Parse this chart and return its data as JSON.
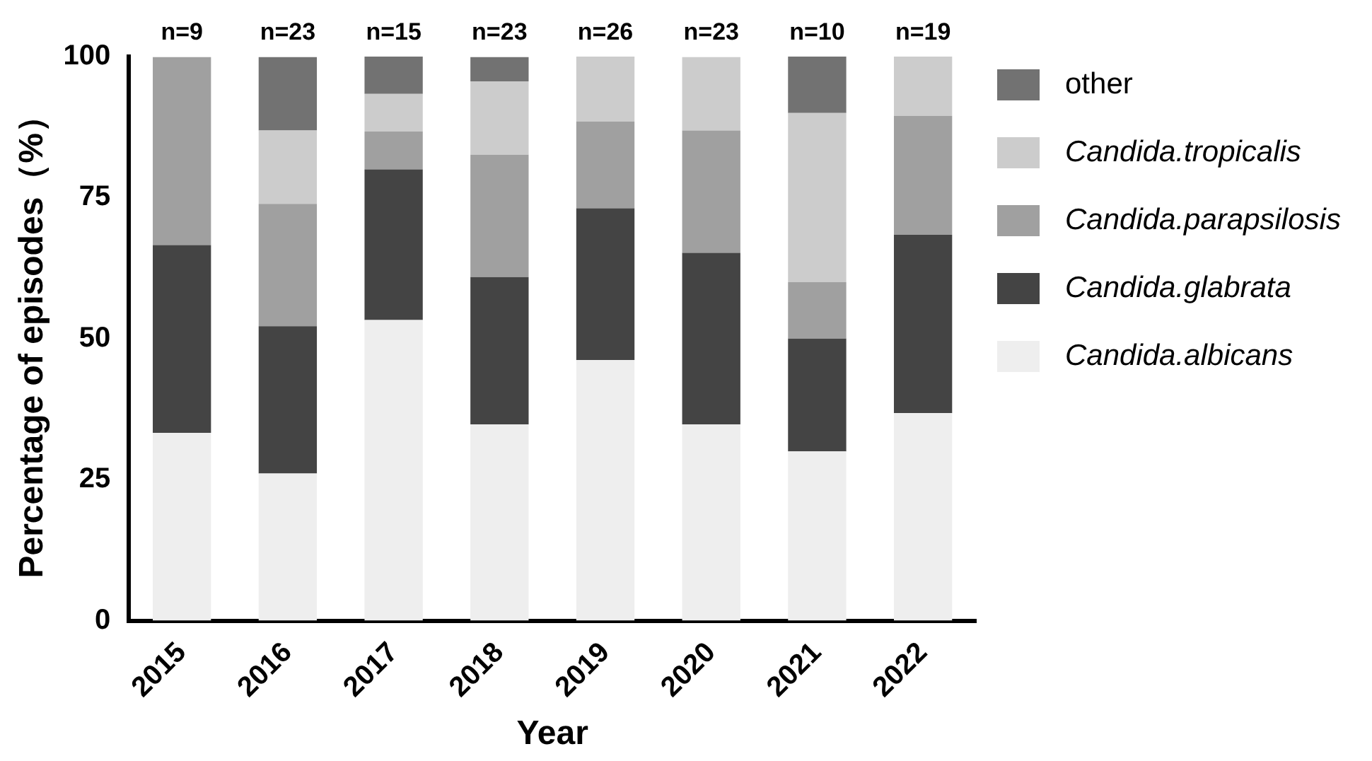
{
  "chart_data": {
    "type": "bar",
    "stacked": true,
    "xlabel": "Year",
    "ylabel": "Percentage of episodes（%）",
    "categories": [
      "2015",
      "2016",
      "2017",
      "2018",
      "2019",
      "2020",
      "2021",
      "2022"
    ],
    "series": [
      {
        "name": "Candida.albicans",
        "color": "#eeeeee",
        "values": [
          33.3,
          26.1,
          53.3,
          34.8,
          46.2,
          34.8,
          30,
          36.8
        ]
      },
      {
        "name": "Candida.glabrata",
        "color": "#444444",
        "values": [
          33.3,
          26.1,
          26.7,
          26.1,
          26.9,
          30.4,
          20,
          31.6
        ]
      },
      {
        "name": "Candida.parapsilosis",
        "color": "#a0a0a0",
        "values": [
          33.3,
          21.7,
          6.7,
          21.7,
          15.4,
          21.7,
          10,
          21.1
        ]
      },
      {
        "name": "Candida.tropicalis",
        "color": "#cccccc",
        "values": [
          0,
          13,
          6.7,
          13,
          11.5,
          13,
          30,
          10.5
        ]
      },
      {
        "name": "other",
        "color": "#727272",
        "values": [
          0,
          13,
          6.7,
          4.3,
          0,
          0,
          10,
          0
        ]
      }
    ],
    "ylim": [
      0,
      100
    ],
    "yticks": [
      0,
      25,
      50,
      75,
      100
    ],
    "grid": false,
    "legend": "right",
    "annotations": [
      "n=9",
      "n=23",
      "n=15",
      "n=23",
      "n=26",
      "n=23",
      "n=10",
      "n=19"
    ]
  }
}
